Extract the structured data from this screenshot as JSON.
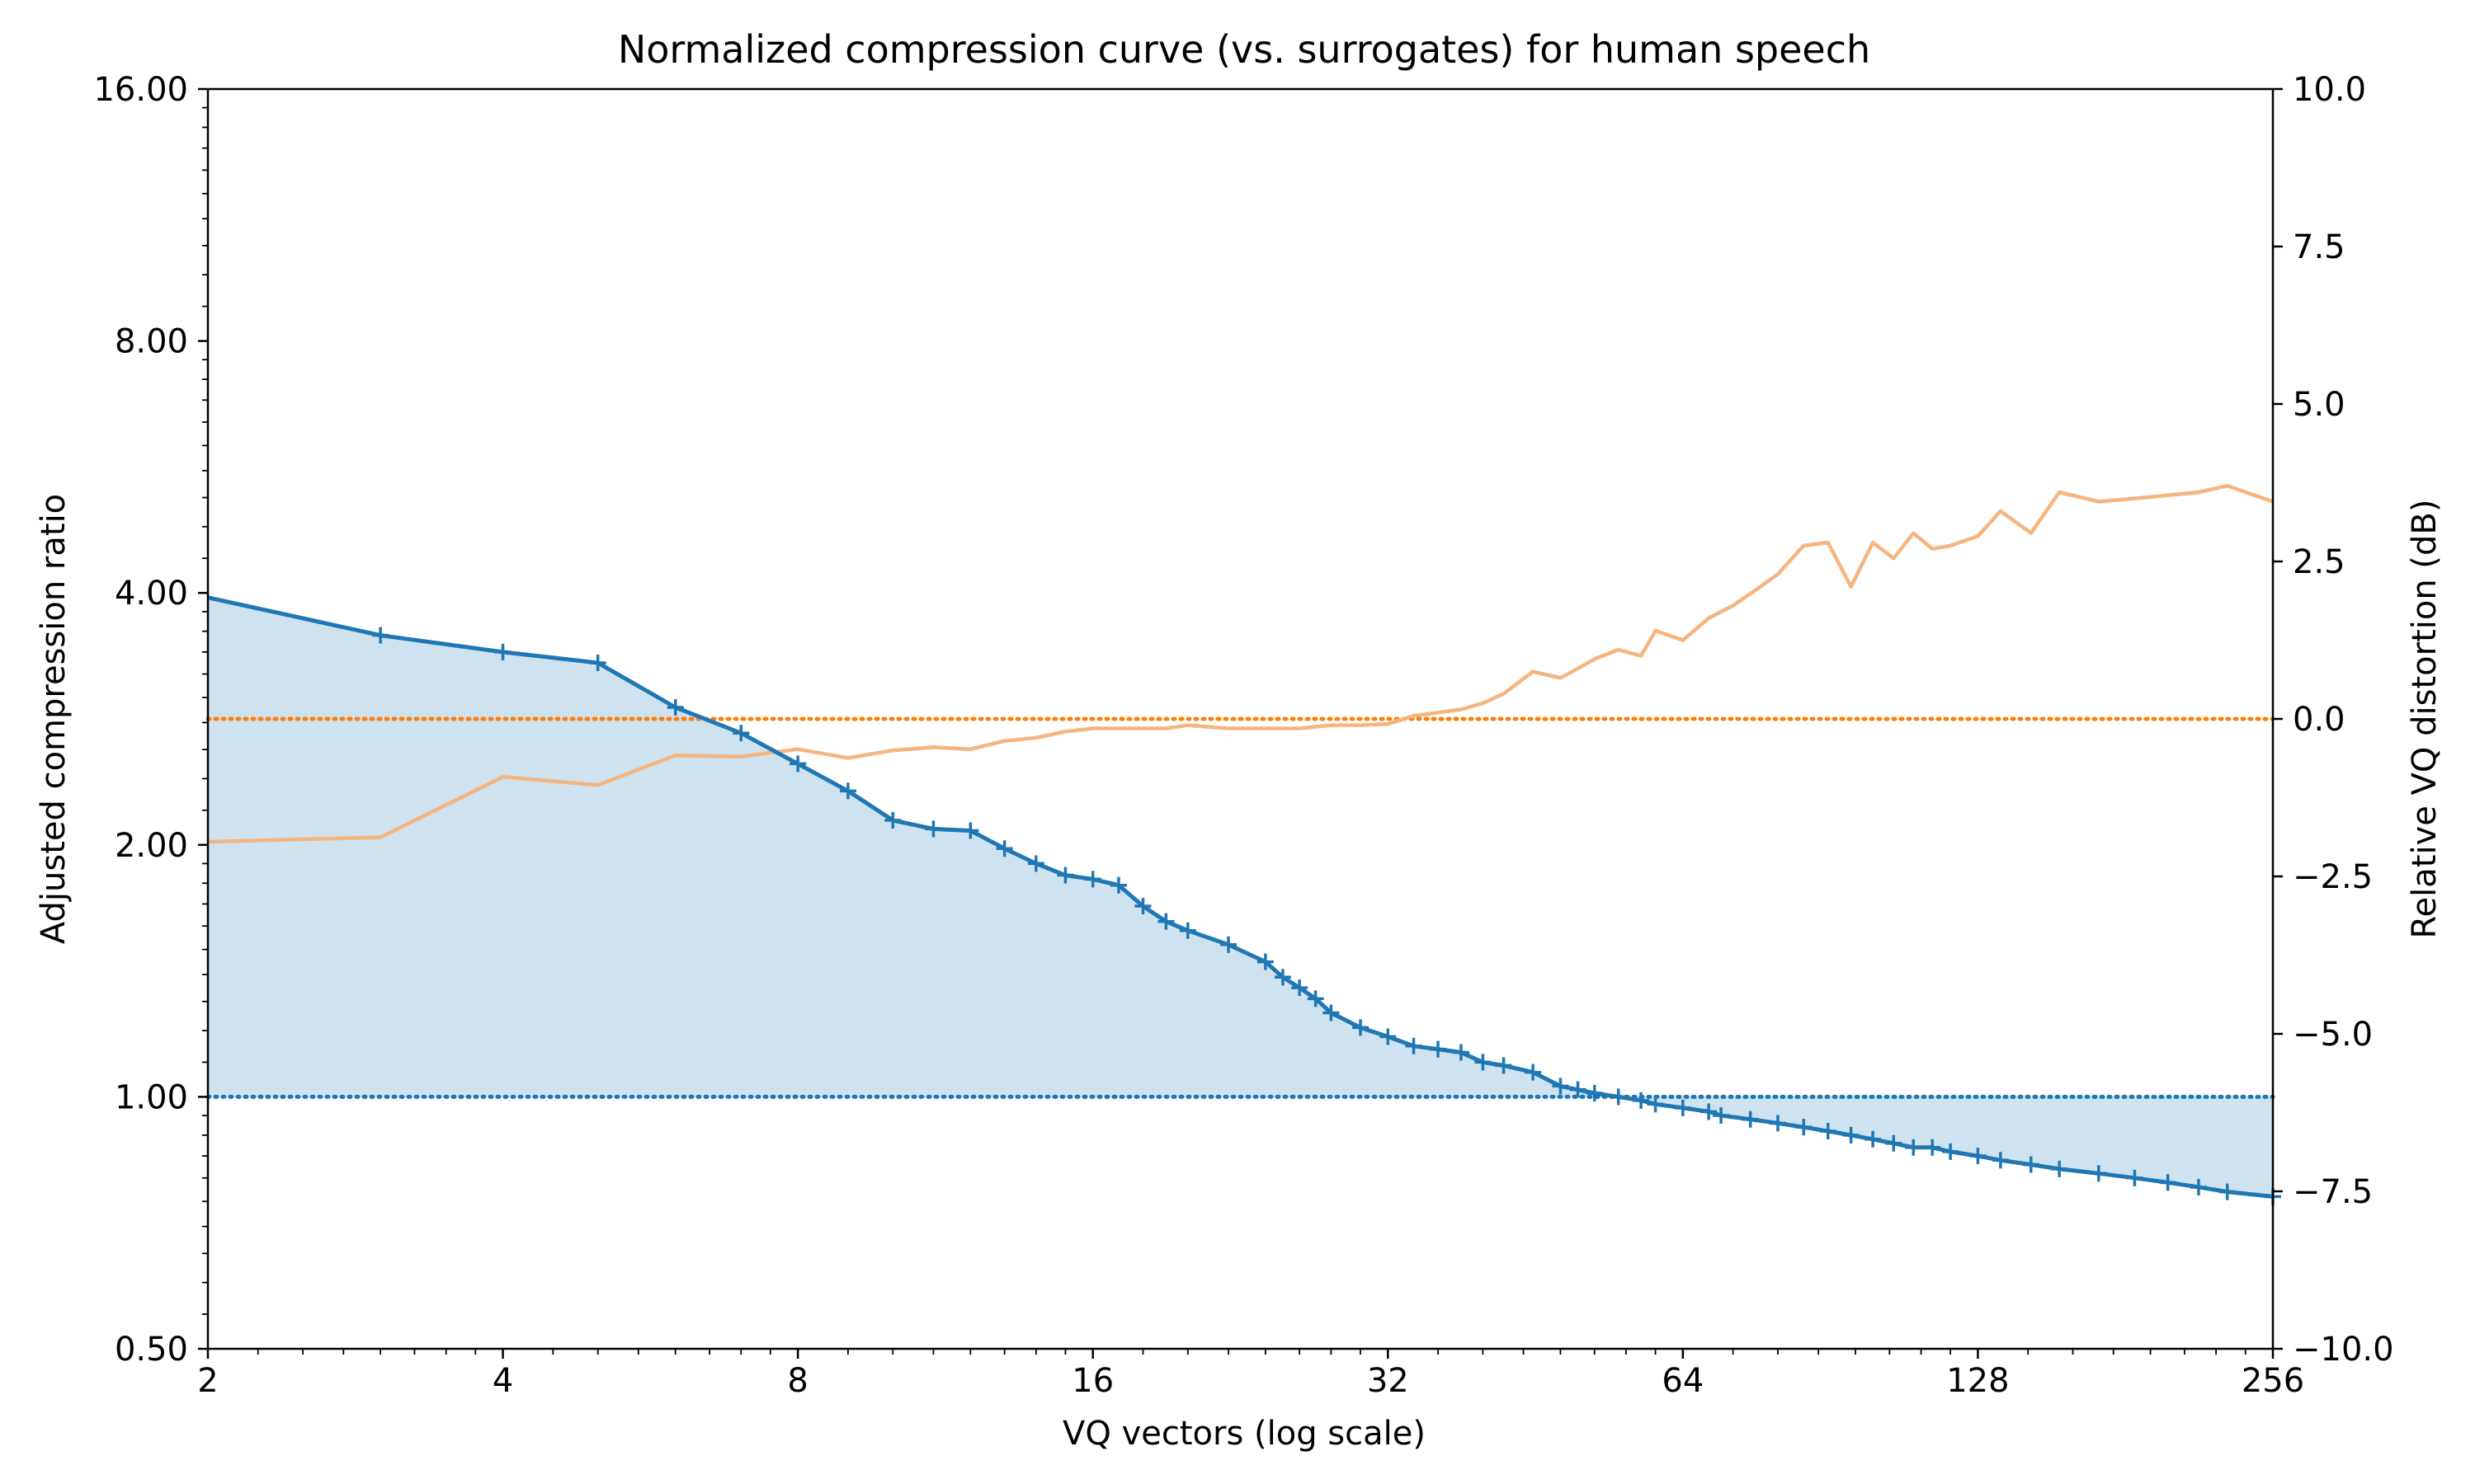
{
  "chart_data": {
    "type": "line",
    "title": "Normalized compression curve (vs. surrogates) for human speech",
    "xlabel": "VQ vectors (log scale)",
    "ylabel": "Adjusted compression ratio",
    "ylabel_right": "Relative VQ distortion (dB)",
    "xscale": "log2",
    "yscale": "log2",
    "xlim": [
      2,
      256
    ],
    "ylim": [
      0.5,
      16
    ],
    "ylim_right": [
      -10,
      10
    ],
    "x_ticks": [
      2,
      4,
      8,
      16,
      32,
      64,
      128,
      256
    ],
    "x_tick_labels": [
      "2",
      "4",
      "8",
      "16",
      "32",
      "64",
      "128",
      "256"
    ],
    "y_ticks": [
      0.5,
      1,
      2,
      4,
      8,
      16
    ],
    "y_tick_labels": [
      "0.50",
      "1.00",
      "2.00",
      "4.00",
      "8.00",
      "16.00"
    ],
    "y_ticks_right": [
      -10,
      -7.5,
      -5,
      -2.5,
      0,
      2.5,
      5,
      7.5,
      10
    ],
    "y_tick_labels_right": [
      "−10.0",
      "−7.5",
      "−5.0",
      "−2.5",
      "0.0",
      "2.5",
      "5.0",
      "7.5",
      "10.0"
    ],
    "grid": false,
    "colors": {
      "compression": "#1f77b4",
      "compression_fill": "#cfe2ef",
      "distortion": "#f5b57f",
      "reference_right": "#ff7f0e",
      "reference_left": "#1f77b4"
    },
    "reference_lines": [
      {
        "axis": "left",
        "value": 1.0,
        "style": "dotted"
      },
      {
        "axis": "right",
        "value": 0.0,
        "style": "dotted"
      }
    ],
    "series": [
      {
        "axis": "left",
        "marker": "+",
        "fill_to": 1.0,
        "x": [
          2,
          3,
          4,
          5,
          6,
          7,
          8,
          9,
          10,
          11,
          12,
          13,
          14,
          15,
          16,
          17,
          18,
          19,
          20,
          22,
          24,
          25,
          26,
          27,
          28,
          30,
          32,
          34,
          36,
          38,
          40,
          42,
          45,
          48,
          50,
          52,
          55,
          58,
          60,
          64,
          68,
          70,
          75,
          80,
          85,
          90,
          95,
          100,
          105,
          110,
          115,
          120,
          128,
          135,
          145,
          155,
          170,
          185,
          200,
          215,
          230,
          256
        ],
        "values": [
          3.95,
          3.56,
          3.4,
          3.3,
          2.92,
          2.72,
          2.5,
          2.32,
          2.14,
          2.09,
          2.08,
          1.98,
          1.9,
          1.84,
          1.82,
          1.79,
          1.69,
          1.62,
          1.58,
          1.52,
          1.45,
          1.39,
          1.35,
          1.31,
          1.26,
          1.21,
          1.18,
          1.15,
          1.14,
          1.13,
          1.1,
          1.09,
          1.07,
          1.03,
          1.02,
          1.01,
          1.0,
          0.99,
          0.98,
          0.97,
          0.96,
          0.95,
          0.94,
          0.93,
          0.92,
          0.91,
          0.9,
          0.89,
          0.88,
          0.87,
          0.87,
          0.86,
          0.85,
          0.84,
          0.83,
          0.82,
          0.81,
          0.8,
          0.79,
          0.78,
          0.77,
          0.76
        ]
      },
      {
        "axis": "right",
        "x": [
          2,
          3,
          4,
          5,
          6,
          7,
          8,
          9,
          10,
          11,
          12,
          13,
          14,
          15,
          16,
          17,
          18,
          19,
          20,
          22,
          24,
          26,
          28,
          30,
          32,
          34,
          36,
          38,
          40,
          42,
          45,
          48,
          50,
          52,
          55,
          58,
          60,
          64,
          68,
          72,
          76,
          80,
          85,
          90,
          95,
          100,
          105,
          110,
          115,
          120,
          128,
          135,
          145,
          155,
          170,
          185,
          200,
          215,
          230,
          256
        ],
        "values": [
          -1.95,
          -1.88,
          -0.92,
          -1.05,
          -0.58,
          -0.6,
          -0.48,
          -0.62,
          -0.5,
          -0.45,
          -0.48,
          -0.35,
          -0.3,
          -0.2,
          -0.15,
          -0.15,
          -0.15,
          -0.15,
          -0.1,
          -0.15,
          -0.15,
          -0.15,
          -0.1,
          -0.1,
          -0.08,
          0.05,
          0.1,
          0.15,
          0.25,
          0.4,
          0.75,
          0.65,
          0.8,
          0.95,
          1.1,
          1.0,
          1.4,
          1.25,
          1.6,
          1.8,
          2.05,
          2.3,
          2.75,
          2.8,
          2.1,
          2.8,
          2.55,
          2.95,
          2.7,
          2.75,
          2.9,
          3.3,
          2.95,
          3.6,
          3.45,
          3.5,
          3.55,
          3.6,
          3.7,
          3.45
        ]
      }
    ]
  }
}
